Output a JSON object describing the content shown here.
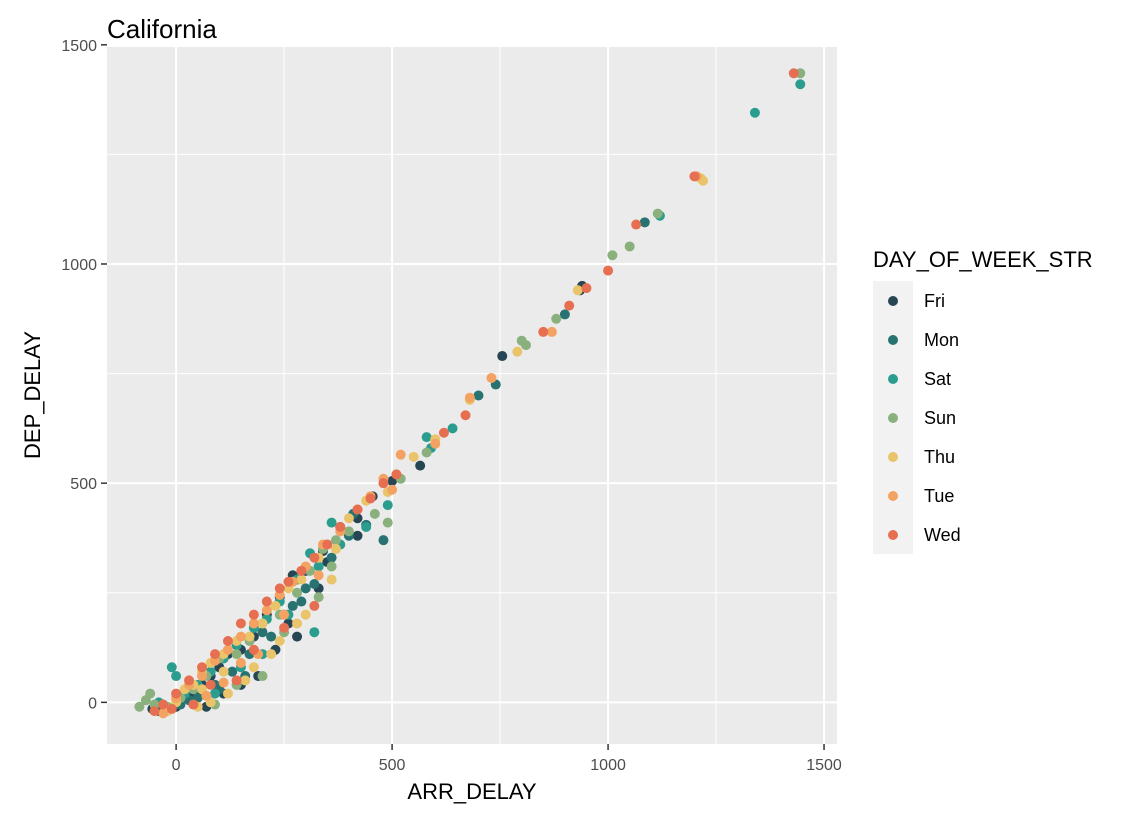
{
  "chart_data": {
    "type": "scatter",
    "title": "California",
    "xlabel": "ARR_DELAY",
    "ylabel": "DEP_DELAY",
    "xlim": [
      -160,
      1530
    ],
    "ylim": [
      -95,
      1495
    ],
    "x_ticks": [
      0,
      500,
      1000,
      1500
    ],
    "y_ticks": [
      0,
      500,
      1000,
      1500
    ],
    "grid": true,
    "legend": {
      "title": "DAY_OF_WEEK_STR",
      "placement": "right"
    },
    "series": [
      {
        "name": "Fri",
        "color": "#264653",
        "points": [
          [
            940,
            950
          ],
          [
            935,
            940
          ],
          [
            755,
            790
          ],
          [
            565,
            540
          ],
          [
            500,
            505
          ],
          [
            455,
            470
          ],
          [
            420,
            420
          ],
          [
            380,
            400
          ],
          [
            340,
            345
          ],
          [
            300,
            300
          ],
          [
            270,
            290
          ],
          [
            240,
            240
          ],
          [
            210,
            200
          ],
          [
            180,
            150
          ],
          [
            150,
            120
          ],
          [
            120,
            110
          ],
          [
            100,
            80
          ],
          [
            80,
            60
          ],
          [
            60,
            40
          ],
          [
            40,
            20
          ],
          [
            20,
            10
          ],
          [
            0,
            -10
          ],
          [
            -20,
            -15
          ],
          [
            -40,
            -20
          ],
          [
            190,
            60
          ],
          [
            260,
            180
          ],
          [
            330,
            260
          ],
          [
            420,
            380
          ],
          [
            280,
            150
          ],
          [
            150,
            40
          ],
          [
            110,
            20
          ],
          [
            70,
            -10
          ],
          [
            350,
            320
          ],
          [
            230,
            120
          ],
          [
            -55,
            -15
          ]
        ]
      },
      {
        "name": "Mon",
        "color": "#287271",
        "points": [
          [
            1085,
            1095
          ],
          [
            900,
            885
          ],
          [
            740,
            725
          ],
          [
            700,
            700
          ],
          [
            480,
            370
          ],
          [
            440,
            405
          ],
          [
            400,
            380
          ],
          [
            360,
            330
          ],
          [
            320,
            270
          ],
          [
            290,
            230
          ],
          [
            250,
            200
          ],
          [
            200,
            160
          ],
          [
            170,
            110
          ],
          [
            130,
            70
          ],
          [
            90,
            40
          ],
          [
            60,
            20
          ],
          [
            30,
            5
          ],
          [
            10,
            -5
          ],
          [
            -30,
            -20
          ],
          [
            300,
            260
          ],
          [
            220,
            150
          ],
          [
            160,
            60
          ],
          [
            410,
            430
          ],
          [
            270,
            220
          ],
          [
            100,
            30
          ],
          [
            50,
            10
          ]
        ]
      },
      {
        "name": "Sat",
        "color": "#2a9d8f",
        "points": [
          [
            1445,
            1410
          ],
          [
            1340,
            1345
          ],
          [
            1120,
            1110
          ],
          [
            640,
            625
          ],
          [
            580,
            605
          ],
          [
            590,
            580
          ],
          [
            490,
            450
          ],
          [
            440,
            400
          ],
          [
            380,
            360
          ],
          [
            330,
            310
          ],
          [
            310,
            340
          ],
          [
            280,
            280
          ],
          [
            240,
            230
          ],
          [
            210,
            190
          ],
          [
            180,
            170
          ],
          [
            140,
            130
          ],
          [
            110,
            100
          ],
          [
            80,
            70
          ],
          [
            50,
            40
          ],
          [
            20,
            20
          ],
          [
            0,
            60
          ],
          [
            -10,
            80
          ],
          [
            -40,
            0
          ],
          [
            320,
            160
          ],
          [
            260,
            200
          ],
          [
            150,
            80
          ],
          [
            360,
            410
          ],
          [
            200,
            110
          ],
          [
            90,
            20
          ]
        ]
      },
      {
        "name": "Sun",
        "color": "#8ab17d",
        "points": [
          [
            1445,
            1435
          ],
          [
            1115,
            1115
          ],
          [
            1050,
            1040
          ],
          [
            1010,
            1020
          ],
          [
            880,
            875
          ],
          [
            800,
            825
          ],
          [
            810,
            815
          ],
          [
            580,
            570
          ],
          [
            520,
            510
          ],
          [
            490,
            410
          ],
          [
            460,
            430
          ],
          [
            400,
            390
          ],
          [
            370,
            370
          ],
          [
            340,
            350
          ],
          [
            310,
            300
          ],
          [
            280,
            250
          ],
          [
            240,
            200
          ],
          [
            200,
            180
          ],
          [
            170,
            140
          ],
          [
            140,
            110
          ],
          [
            100,
            100
          ],
          [
            70,
            60
          ],
          [
            40,
            30
          ],
          [
            10,
            10
          ],
          [
            -20,
            -10
          ],
          [
            -50,
            -5
          ],
          [
            -70,
            5
          ],
          [
            -85,
            -10
          ],
          [
            -60,
            20
          ],
          [
            330,
            240
          ],
          [
            360,
            310
          ],
          [
            250,
            160
          ],
          [
            140,
            40
          ],
          [
            200,
            60
          ],
          [
            90,
            -5
          ]
        ]
      },
      {
        "name": "Thu",
        "color": "#e9c46a",
        "points": [
          [
            1220,
            1190
          ],
          [
            1215,
            1195
          ],
          [
            930,
            940
          ],
          [
            790,
            800
          ],
          [
            680,
            690
          ],
          [
            600,
            600
          ],
          [
            550,
            560
          ],
          [
            490,
            480
          ],
          [
            440,
            460
          ],
          [
            400,
            420
          ],
          [
            370,
            350
          ],
          [
            330,
            330
          ],
          [
            290,
            280
          ],
          [
            260,
            260
          ],
          [
            230,
            220
          ],
          [
            200,
            180
          ],
          [
            170,
            150
          ],
          [
            140,
            140
          ],
          [
            110,
            110
          ],
          [
            80,
            90
          ],
          [
            60,
            70
          ],
          [
            40,
            40
          ],
          [
            20,
            30
          ],
          [
            0,
            0
          ],
          [
            -20,
            -20
          ],
          [
            120,
            20
          ],
          [
            180,
            80
          ],
          [
            240,
            140
          ],
          [
            300,
            200
          ],
          [
            360,
            280
          ],
          [
            160,
            50
          ],
          [
            80,
            0
          ],
          [
            50,
            -10
          ],
          [
            220,
            110
          ],
          [
            280,
            180
          ],
          [
            110,
            70
          ],
          [
            60,
            30
          ]
        ]
      },
      {
        "name": "Tue",
        "color": "#f4a261",
        "points": [
          [
            1205,
            1200
          ],
          [
            870,
            845
          ],
          [
            730,
            740
          ],
          [
            680,
            695
          ],
          [
            600,
            590
          ],
          [
            520,
            565
          ],
          [
            500,
            485
          ],
          [
            480,
            510
          ],
          [
            450,
            470
          ],
          [
            420,
            440
          ],
          [
            380,
            390
          ],
          [
            340,
            360
          ],
          [
            300,
            310
          ],
          [
            270,
            275
          ],
          [
            240,
            245
          ],
          [
            210,
            210
          ],
          [
            180,
            180
          ],
          [
            150,
            150
          ],
          [
            120,
            120
          ],
          [
            90,
            95
          ],
          [
            60,
            60
          ],
          [
            30,
            40
          ],
          [
            0,
            10
          ],
          [
            -30,
            -25
          ],
          [
            330,
            290
          ],
          [
            250,
            200
          ],
          [
            190,
            110
          ],
          [
            110,
            45
          ],
          [
            70,
            15
          ],
          [
            150,
            90
          ]
        ]
      },
      {
        "name": "Wed",
        "color": "#e76f51",
        "points": [
          [
            1430,
            1435
          ],
          [
            1200,
            1200
          ],
          [
            1065,
            1090
          ],
          [
            1000,
            985
          ],
          [
            950,
            945
          ],
          [
            910,
            905
          ],
          [
            850,
            845
          ],
          [
            670,
            655
          ],
          [
            620,
            615
          ],
          [
            510,
            520
          ],
          [
            480,
            500
          ],
          [
            450,
            465
          ],
          [
            420,
            440
          ],
          [
            380,
            400
          ],
          [
            350,
            360
          ],
          [
            320,
            330
          ],
          [
            290,
            300
          ],
          [
            260,
            275
          ],
          [
            240,
            260
          ],
          [
            210,
            230
          ],
          [
            180,
            200
          ],
          [
            150,
            180
          ],
          [
            120,
            140
          ],
          [
            90,
            110
          ],
          [
            60,
            80
          ],
          [
            30,
            50
          ],
          [
            0,
            20
          ],
          [
            -10,
            -15
          ],
          [
            -30,
            -5
          ],
          [
            -50,
            -20
          ],
          [
            320,
            220
          ],
          [
            250,
            170
          ],
          [
            180,
            120
          ],
          [
            140,
            50
          ],
          [
            80,
            40
          ],
          [
            40,
            -5
          ]
        ]
      }
    ]
  }
}
